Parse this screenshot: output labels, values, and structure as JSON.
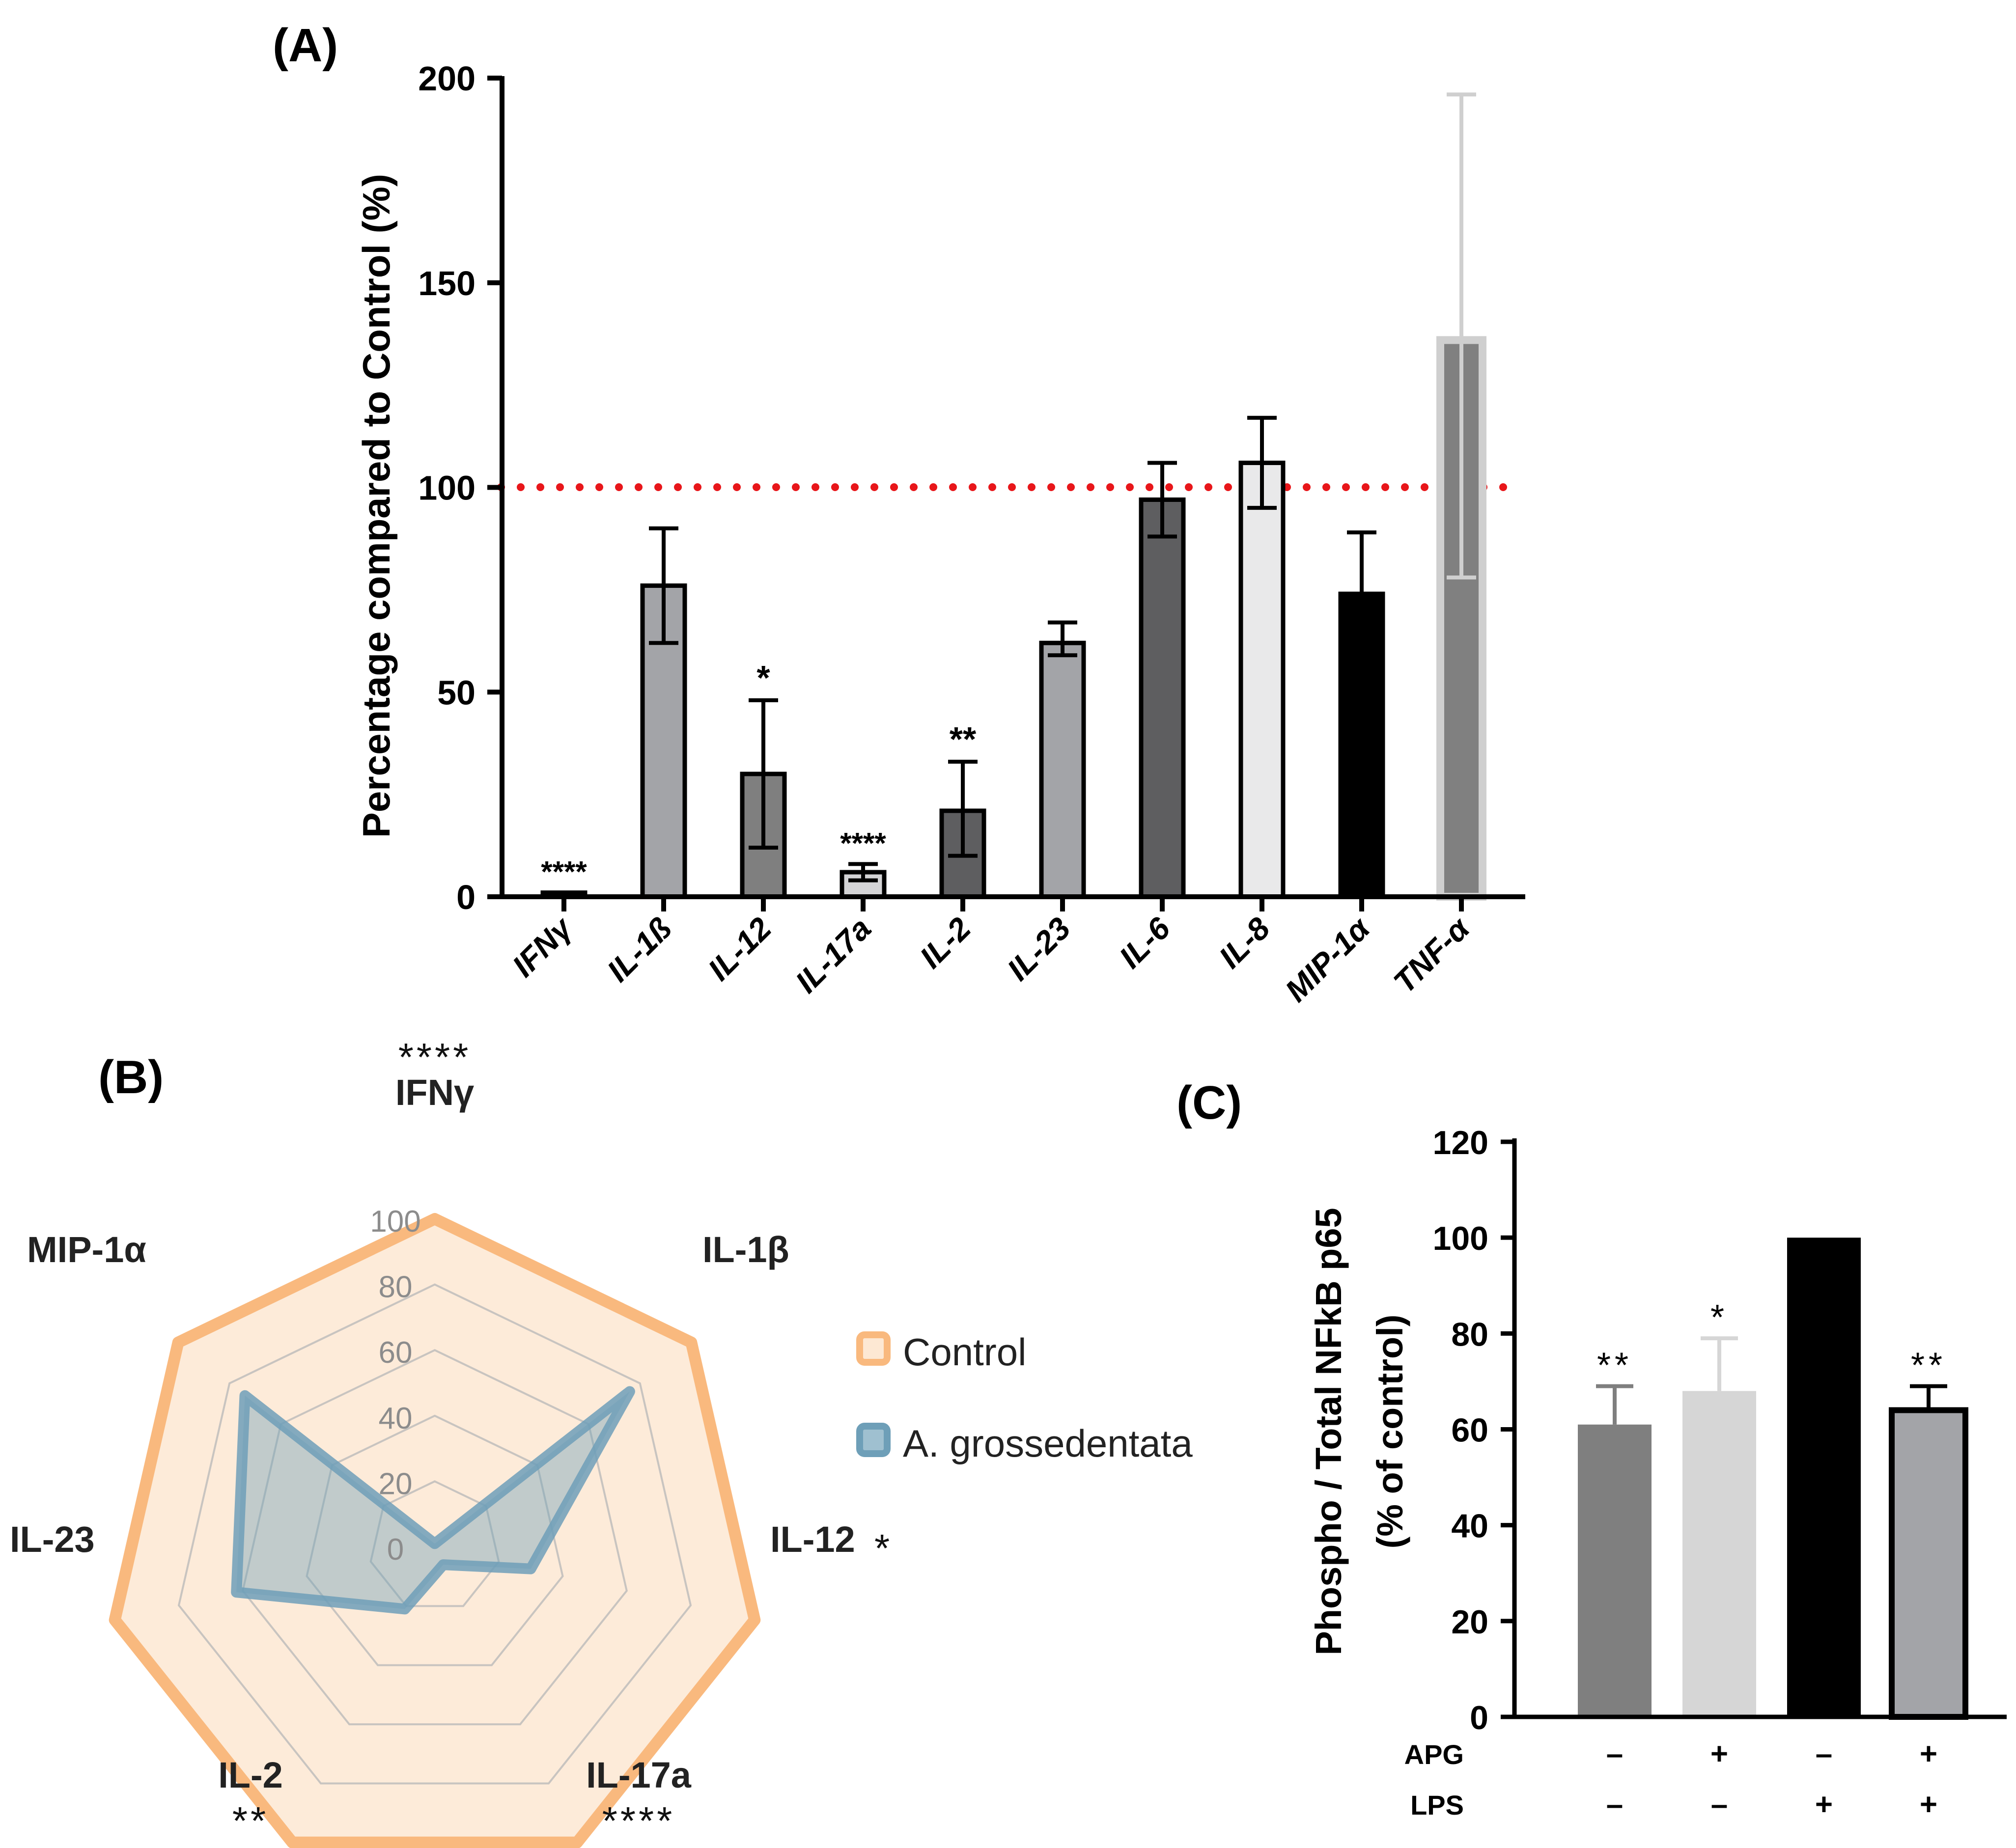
{
  "chart_data": [
    {
      "panel": "(A)",
      "type": "bar",
      "ylabel": "Percentage compared to Control (%)",
      "ylim": [
        0,
        200
      ],
      "yticks": [
        0,
        50,
        100,
        150,
        200
      ],
      "reference_line": {
        "y": 100,
        "color": "#e8161a",
        "style": "dotted"
      },
      "categories": [
        "IFNγ",
        "IL-1ß",
        "IL-12",
        "IL-17a",
        "IL-2",
        "IL-23",
        "IL-6",
        "IL-8",
        "MIP-1α",
        "TNF-α"
      ],
      "values": [
        1,
        76,
        30,
        6,
        21,
        62,
        97,
        106,
        74,
        136
      ],
      "err_low": [
        0,
        62,
        12,
        4,
        10,
        59,
        88,
        95,
        74,
        78
      ],
      "err_high": [
        1,
        90,
        48,
        8,
        33,
        67,
        106,
        117,
        89,
        196
      ],
      "significance": [
        "****",
        "",
        "*",
        "****",
        "**",
        "",
        "",
        "",
        "",
        ""
      ],
      "bar_colors": [
        "#000000",
        "#a3a4a8",
        "#7f7f7f",
        "#d4d4d6",
        "#5e5e60",
        "#a3a4a8",
        "#5e5e60",
        "#e9e9ea",
        "#000000",
        "#808080"
      ]
    },
    {
      "panel": "(B)",
      "type": "radar",
      "axes": [
        "IFNγ",
        "IL-1β",
        "IL-12",
        "IL-17a",
        "IL-2",
        "IL-23",
        "MIP-1α"
      ],
      "axis_significance": [
        "****",
        "",
        "*",
        "****",
        "**",
        "",
        ""
      ],
      "rlim": [
        0,
        100
      ],
      "rticks": [
        0,
        20,
        40,
        60,
        80,
        100
      ],
      "series": [
        {
          "name": "Control",
          "values": [
            100,
            100,
            100,
            100,
            100,
            100,
            100
          ],
          "color": "#f9b97e"
        },
        {
          "name": "A. grossedentata",
          "values": [
            1,
            76,
            30,
            6,
            21,
            62,
            74
          ],
          "color": "#6e9fb8"
        }
      ]
    },
    {
      "panel": "(C)",
      "type": "bar",
      "ylabel_line1": "Phospho / Total NFkB p65",
      "ylabel_line2": "(% of control)",
      "ylim": [
        0,
        120
      ],
      "yticks": [
        0,
        20,
        40,
        60,
        80,
        100,
        120
      ],
      "row_labels": [
        "APG",
        "LPS"
      ],
      "apg": [
        "–",
        "+",
        "–",
        "+"
      ],
      "lps": [
        "–",
        "–",
        "+",
        "+"
      ],
      "values": [
        61,
        68,
        100,
        64
      ],
      "err_high": [
        69,
        79,
        100,
        69
      ],
      "significance": [
        "**",
        "*",
        "",
        "**"
      ],
      "bar_colors": [
        "#7f7f7f",
        "#d6d6d6",
        "#000000",
        "#a3a4a8"
      ]
    }
  ]
}
